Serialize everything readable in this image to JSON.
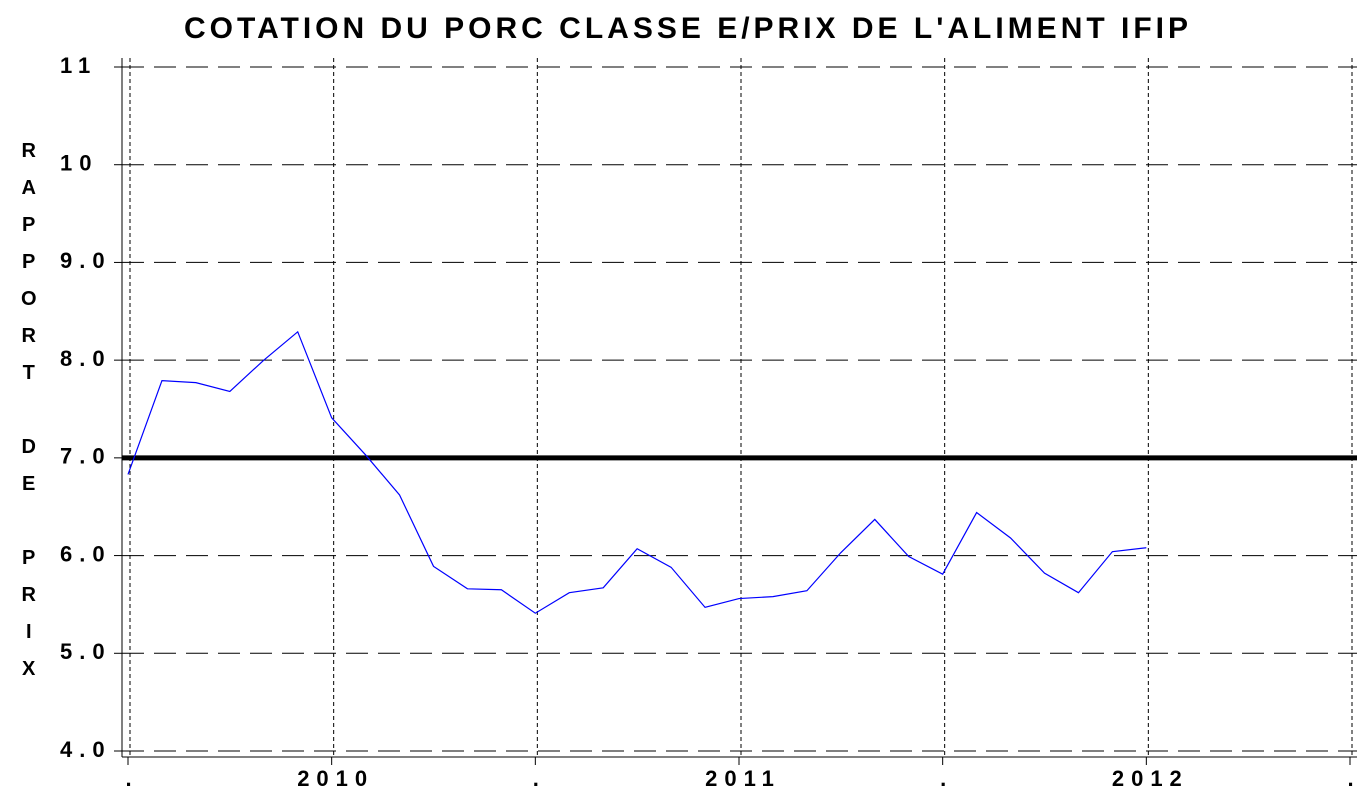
{
  "chart_data": {
    "type": "line",
    "title": "COTATION DU PORC CLASSE E/PRIX DE L'ALIMENT IFIP",
    "y_label": "RAPPORT DE PRIX",
    "x": [
      0,
      1,
      2,
      3,
      4,
      5,
      6,
      7,
      8,
      9,
      10,
      11,
      12,
      13,
      14,
      15,
      16,
      17,
      18,
      19,
      20,
      21,
      22,
      23,
      24,
      25,
      26,
      27,
      28,
      29,
      30
    ],
    "series": [
      {
        "color": "#0000ff",
        "values": [
          6.83,
          7.79,
          7.77,
          7.68,
          8.0,
          8.29,
          7.41,
          7.03,
          6.62,
          5.89,
          5.66,
          5.65,
          5.41,
          5.62,
          5.67,
          6.07,
          5.88,
          5.47,
          5.56,
          5.58,
          5.64,
          6.03,
          6.37,
          5.99,
          5.81,
          6.44,
          6.18,
          5.82,
          5.62,
          6.04,
          6.08
        ]
      }
    ],
    "xlim": [
      0,
      36
    ],
    "xticks": [
      {
        "value": 0,
        "label": "."
      },
      {
        "value": 6,
        "label": "2010"
      },
      {
        "value": 12,
        "label": "."
      },
      {
        "value": 18,
        "label": "2011"
      },
      {
        "value": 24,
        "label": "."
      },
      {
        "value": 30,
        "label": "2012"
      },
      {
        "value": 36,
        "label": "."
      }
    ],
    "ylim": [
      4,
      11
    ],
    "yticks": [
      {
        "value": 4,
        "label": "4.0"
      },
      {
        "value": 5,
        "label": "5.0"
      },
      {
        "value": 6,
        "label": "6.0"
      },
      {
        "value": 7,
        "label": "7.0"
      },
      {
        "value": 8,
        "label": "8.0"
      },
      {
        "value": 9,
        "label": "9.0"
      },
      10,
      11
    ],
    "reference_line": 7,
    "grid": true
  }
}
